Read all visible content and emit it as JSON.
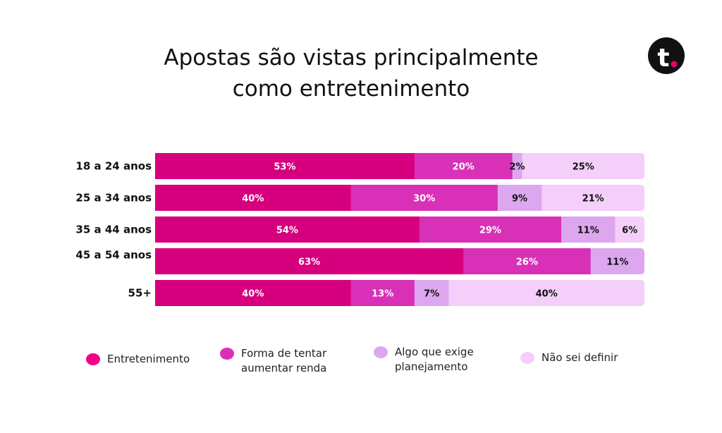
{
  "title_lines": [
    "Apostas são vistas principalmente",
    "como entretenimento"
  ],
  "logo": {
    "letter": "t",
    "color": "#111111",
    "dot_color": "#e6006e"
  },
  "chart_data": {
    "type": "bar",
    "orientation": "horizontal",
    "stacked": true,
    "categories": [
      "18 a 24 anos",
      "25 a 34 anos",
      "35 a 44 anos",
      "45 a 54 anos",
      "55+"
    ],
    "series": [
      {
        "name": "Entretenimento",
        "color": "#d6007f",
        "label_color": "#ffffff",
        "values": [
          53,
          40,
          54,
          63,
          40
        ],
        "labels": [
          "53%",
          "40%",
          "54%",
          "63%",
          "40%"
        ]
      },
      {
        "name": "Forma de tentar aumentar renda",
        "color": "#d930b8",
        "label_color": "#ffffff",
        "values": [
          20,
          30,
          29,
          26,
          13
        ],
        "labels": [
          "20%",
          "30%",
          "29%",
          "26%",
          "13%"
        ]
      },
      {
        "name": "Algo que exige planejamento",
        "color": "#dca7ef",
        "label_color": "#111111",
        "values": [
          2,
          9,
          11,
          11,
          7
        ],
        "labels": [
          "2%",
          "9%",
          "11%",
          "11%",
          "7%"
        ]
      },
      {
        "name": "Não sei definir",
        "color": "#f3cff9",
        "label_color": "#111111",
        "values": [
          25,
          21,
          6,
          0,
          40
        ],
        "labels": [
          "25%",
          "21%",
          "6%",
          "",
          "40%"
        ]
      }
    ],
    "xlim": [
      0,
      100
    ],
    "grid": false,
    "legend_position": "bottom"
  },
  "legend": [
    {
      "lines": [
        "Entretenimento"
      ],
      "color": "#f5008a"
    },
    {
      "lines": [
        "Forma de tentar",
        "aumentar renda"
      ],
      "color": "#d930b8"
    },
    {
      "lines": [
        "Algo que exige",
        "planejamento"
      ],
      "color": "#dca7ef"
    },
    {
      "lines": [
        "Não sei definir"
      ],
      "color": "#f3cff9"
    }
  ]
}
